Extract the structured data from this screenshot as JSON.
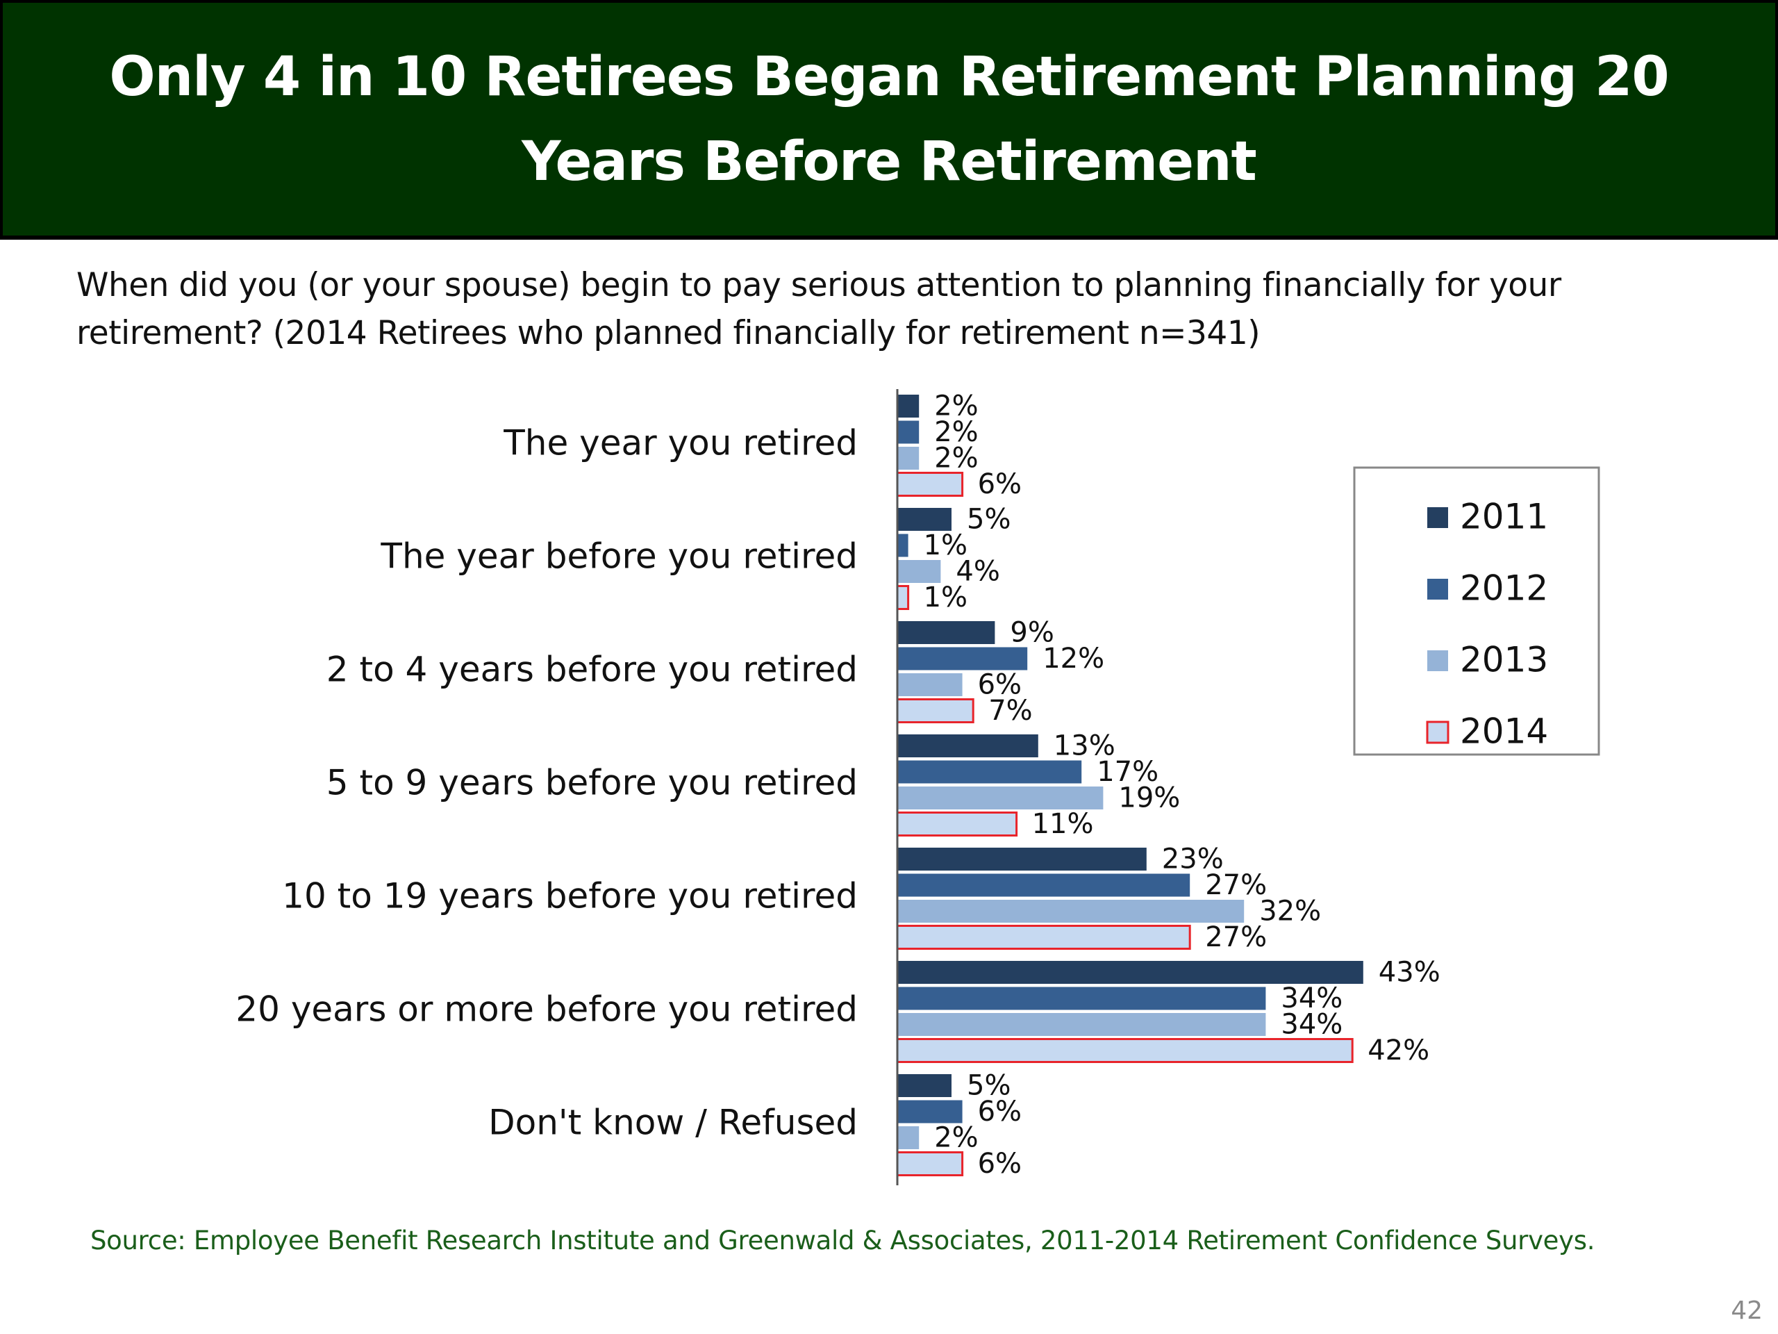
{
  "slide": {
    "title": "Only 4 in 10 Retirees Began Retirement Planning 20 Years Before Retirement",
    "subtitle": "When did you (or your spouse) begin to pay serious attention to planning financially for your retirement?  (2014 Retirees who planned financially for retirement n=341)",
    "source": "Source:  Employee Benefit Research Institute and Greenwald & Associates, 2011-2014 Retirement Confidence Surveys.",
    "page_number": "42"
  },
  "colors": {
    "banner": "#003300",
    "series_2011": "#243F60",
    "series_2012": "#365F91",
    "series_2013": "#95B3D7",
    "series_2014_fill": "#C6D9F1",
    "series_2014_border": "#E8242B",
    "source_text": "#1a5e1a"
  },
  "chart_data": {
    "type": "bar",
    "orientation": "horizontal",
    "categories": [
      "The year you retired",
      "The year before you retired",
      "2 to 4 years before you retired",
      "5 to 9 years before you retired",
      "10 to 19 years before you retired",
      "20 years or more before you retired",
      "Don't know / Refused"
    ],
    "series": [
      {
        "name": "2011",
        "values": [
          2,
          5,
          9,
          13,
          23,
          43,
          5
        ],
        "labels": [
          "2%",
          "5%",
          "9%",
          "13%",
          "23%",
          "43%",
          "5%"
        ]
      },
      {
        "name": "2012",
        "values": [
          2,
          1,
          12,
          17,
          27,
          34,
          6
        ],
        "labels": [
          "2%",
          "1%",
          "12%",
          "17%",
          "27%",
          "34%",
          "6%"
        ]
      },
      {
        "name": "2013",
        "values": [
          2,
          4,
          6,
          19,
          32,
          34,
          2
        ],
        "labels": [
          "2%",
          "4%",
          "6%",
          "19%",
          "32%",
          "34%",
          "2%"
        ]
      },
      {
        "name": "2014",
        "values": [
          6,
          1,
          7,
          11,
          27,
          42,
          6
        ],
        "labels": [
          "6%",
          "1%",
          "7%",
          "11%",
          "27%",
          "42%",
          "6%"
        ]
      }
    ],
    "legend": [
      "2011",
      "2012",
      "2013",
      "2014"
    ],
    "legend_position": "right",
    "xlim": [
      0,
      45
    ],
    "grid": false,
    "axis_visible": false
  }
}
